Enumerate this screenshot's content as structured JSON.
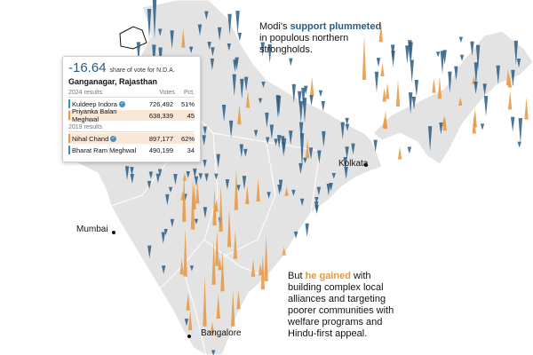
{
  "colors": {
    "decline": "#2a5d84",
    "gain": "#e8973f",
    "land": "#e3e3e3",
    "border": "#ffffff",
    "highlight_row": "#fbe7d6",
    "party_a": "#3f8fb5",
    "party_b": "#e8973f"
  },
  "annotation_north": {
    "line1_pre": "Modi's ",
    "line1_hl": "support plummeted",
    "line2": "in populous northern",
    "line3": "strongholds."
  },
  "annotation_south": {
    "line1_pre": "But ",
    "line1_hl": "he gained",
    "line1_post": " with",
    "line2": "building complex local",
    "line3": "alliances and targeting",
    "line4": "poorer communities with",
    "line5": "welfare programs and",
    "line6": "Hindu-first appeal."
  },
  "cities": {
    "kolkata": "Kolkata",
    "mumbai": "Mumbai",
    "bangalore": "Bangalore"
  },
  "tooltip": {
    "value": "-16.64",
    "caption": "share of vote for N.D.A.",
    "place": "Ganganagar, Rajasthan",
    "sec2024": "2024 results",
    "sec2019": "2019 results",
    "col_votes": "Votes",
    "col_pct": "Pct.",
    "results2024": [
      {
        "name": "Kuldeep Indora",
        "votes": "726,492",
        "pct": "51%",
        "winner": true
      },
      {
        "name": "Priyanka Balan Meghwal",
        "votes": "638,339",
        "pct": "45",
        "winner": false
      }
    ],
    "results2019": [
      {
        "name": "Nihal Chand",
        "votes": "897,177",
        "pct": "62%",
        "winner": true
      },
      {
        "name": "Bharat Ram Meghwal",
        "votes": "490,199",
        "pct": "34",
        "winner": false
      }
    ]
  }
}
